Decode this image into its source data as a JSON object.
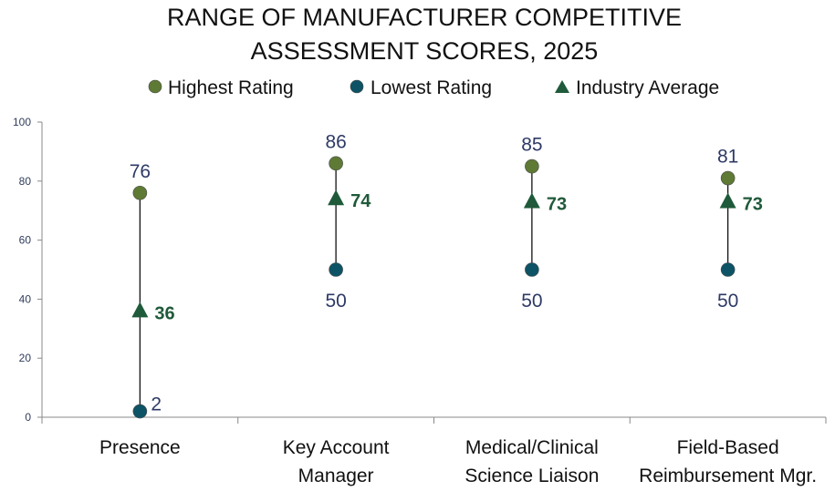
{
  "chart_data": {
    "type": "scatter",
    "title_lines": [
      "RANGE OF MANUFACTURER COMPETITIVE",
      "ASSESSMENT SCORES, 2025"
    ],
    "categories": [
      [
        "Presence"
      ],
      [
        "Key Account",
        "Manager"
      ],
      [
        "Medical/Clinical",
        "Science Liaison"
      ],
      [
        "Field-Based",
        "Reimbursement Mgr."
      ]
    ],
    "series": [
      {
        "name": "Highest Rating",
        "values": [
          76,
          86,
          85,
          81
        ]
      },
      {
        "name": "Lowest Rating",
        "values": [
          2,
          50,
          50,
          50
        ]
      },
      {
        "name": "Industry Average",
        "values": [
          36,
          74,
          73,
          73
        ]
      }
    ],
    "ylim": [
      0,
      100
    ],
    "yticks": [
      0,
      20,
      40,
      60,
      80,
      100
    ],
    "legend_position": "top",
    "grid": false,
    "colors": {
      "highest": "#5e7a35",
      "lowest": "#0d5366",
      "average": "#1f5a3a",
      "range_line": "#111111",
      "axis": "#888888",
      "value_label": "#2e3a66",
      "average_label": "#1f5a3a"
    }
  }
}
